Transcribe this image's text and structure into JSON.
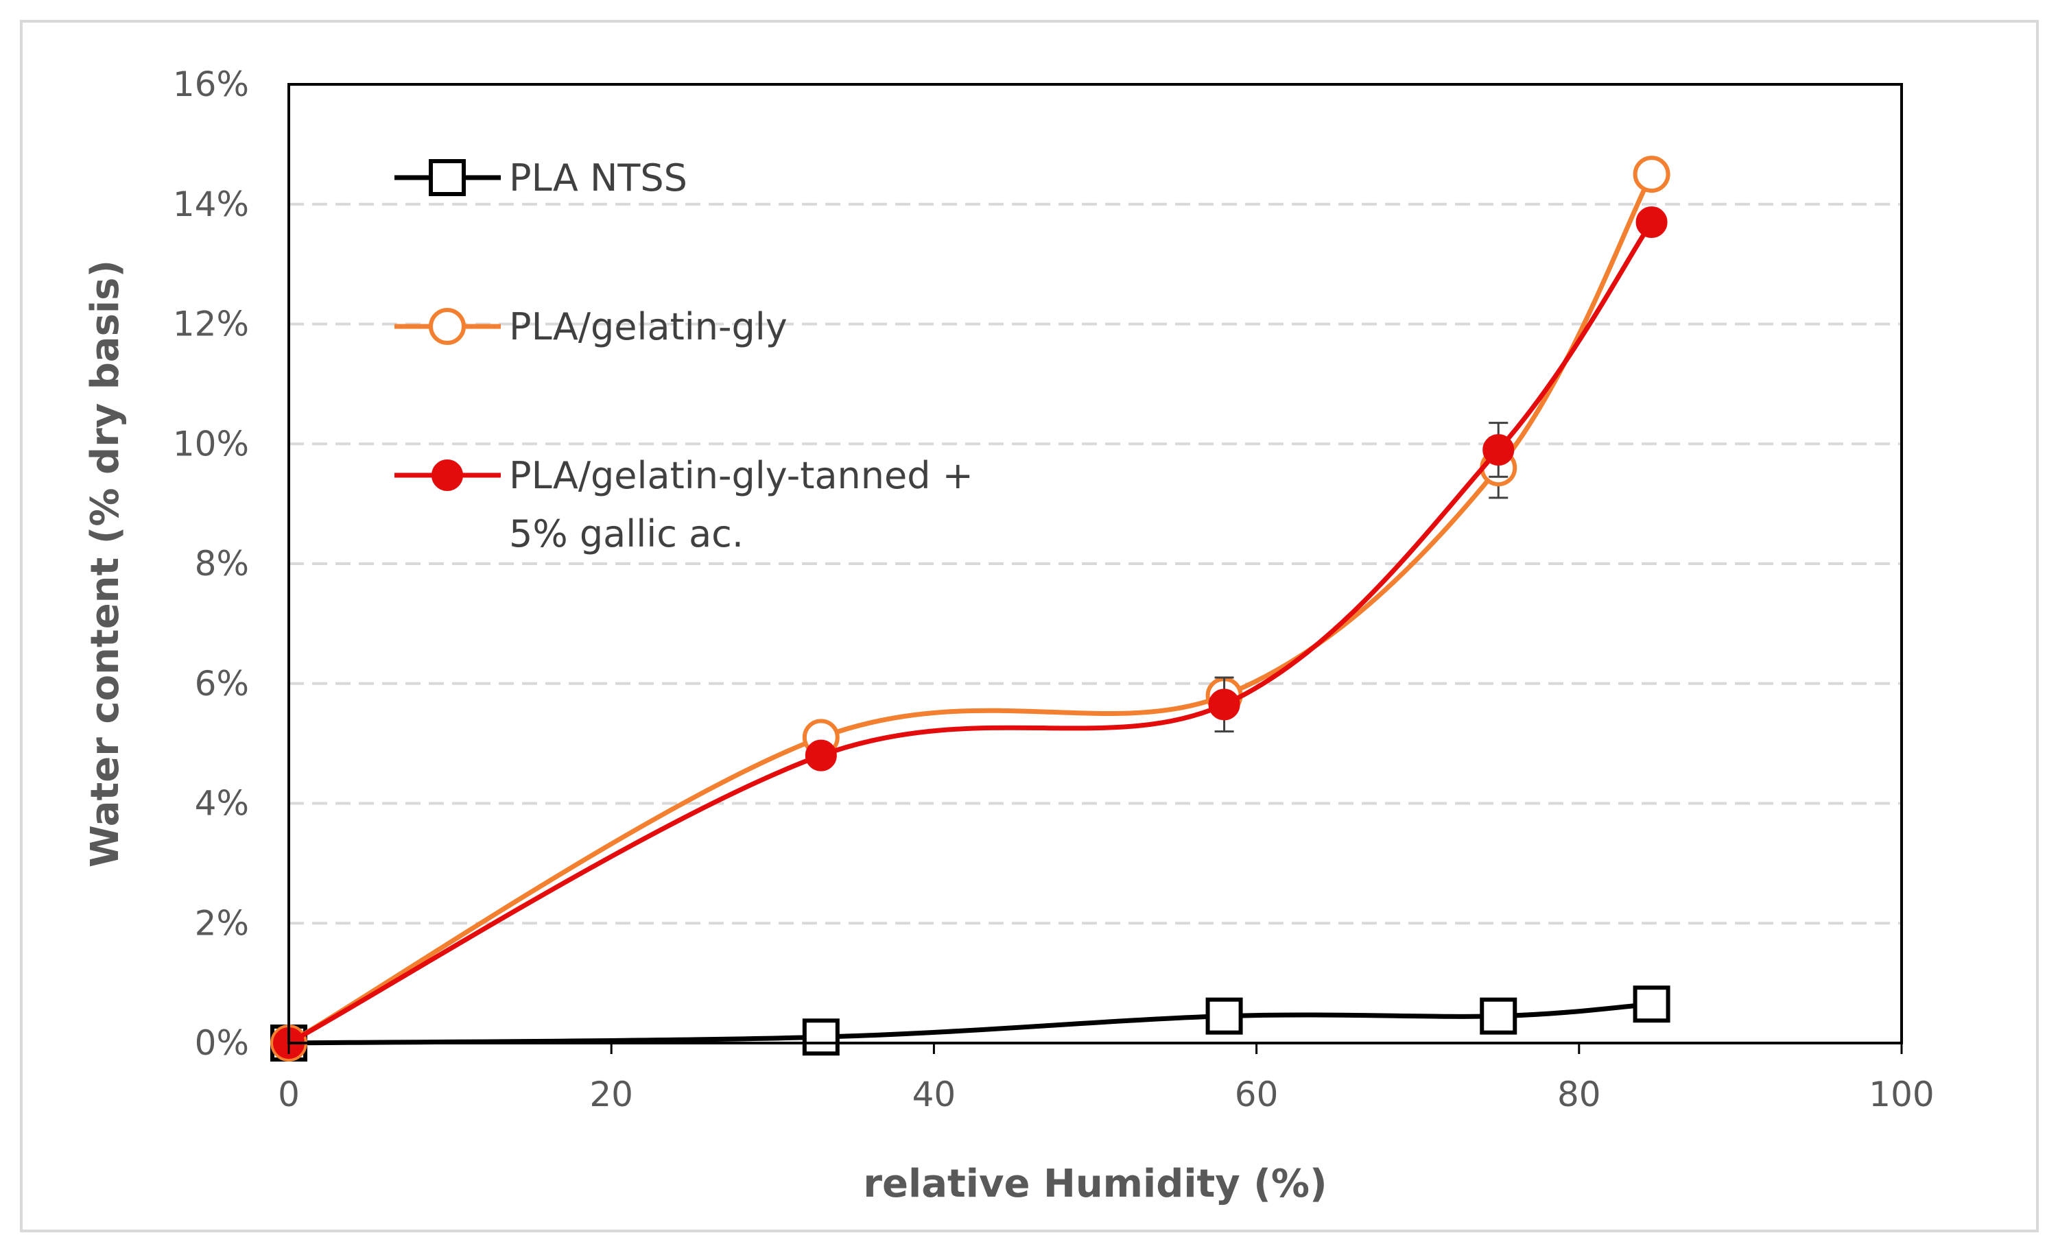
{
  "chart_data": {
    "type": "line",
    "title": "",
    "xlabel": "relative Humidity (%)",
    "ylabel": "Water content (% dry basis)",
    "xlim": [
      0,
      100
    ],
    "ylim": [
      0,
      16
    ],
    "xticks": [
      0,
      20,
      40,
      60,
      80,
      100
    ],
    "yticks": [
      0,
      2,
      4,
      6,
      8,
      10,
      12,
      14,
      16
    ],
    "xtick_labels": [
      "0",
      "20",
      "40",
      "60",
      "80",
      "100"
    ],
    "ytick_labels": [
      "0%",
      "2%",
      "4%",
      "6%",
      "8%",
      "10%",
      "12%",
      "14%",
      "16%"
    ],
    "grid": "horizontal-dashed",
    "legend_position": "top-left",
    "series": [
      {
        "name": "PLA NTSS",
        "color": "#000000",
        "marker": "open-square",
        "x": [
          0,
          33,
          58,
          75,
          84.5
        ],
        "y": [
          0,
          0.1,
          0.45,
          0.45,
          0.65
        ],
        "err": [
          0,
          0,
          0,
          0,
          0
        ]
      },
      {
        "name": "PLA/gelatin-gly",
        "color": "#F28030",
        "marker": "open-circle",
        "x": [
          0,
          33,
          58,
          75,
          84.5
        ],
        "y": [
          0,
          5.1,
          5.8,
          9.6,
          14.5
        ],
        "err": [
          0,
          0.1,
          0.2,
          0.5,
          0.1
        ]
      },
      {
        "name": "PLA/gelatin-gly-tanned + 5% gallic ac.",
        "legend_lines": [
          "PLA/gelatin-gly-tanned +",
          "5% gallic ac."
        ],
        "color": "#E30B0B",
        "marker": "filled-circle",
        "x": [
          0,
          33,
          58,
          75,
          84.5
        ],
        "y": [
          0,
          4.8,
          5.65,
          9.9,
          13.7
        ],
        "err": [
          0,
          0,
          0.45,
          0.45,
          0
        ]
      }
    ]
  }
}
